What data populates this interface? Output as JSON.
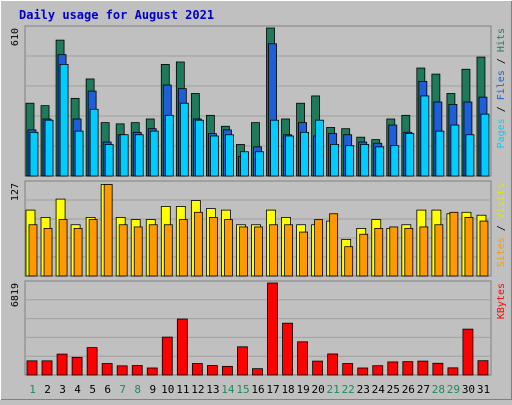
{
  "chart_data": {
    "type": "bar",
    "title": "Daily usage for August 2021",
    "x": [
      "1",
      "2",
      "3",
      "4",
      "5",
      "6",
      "7",
      "8",
      "9",
      "10",
      "11",
      "12",
      "13",
      "14",
      "15",
      "16",
      "17",
      "18",
      "19",
      "20",
      "21",
      "22",
      "23",
      "24",
      "25",
      "26",
      "27",
      "28",
      "29",
      "30",
      "31"
    ],
    "weekend_days": [
      "1",
      "7",
      "8",
      "14",
      "15",
      "21",
      "22",
      "28",
      "29"
    ],
    "panels": [
      {
        "id": "hits",
        "ymax_label": "610",
        "ymax": 610,
        "grid": true,
        "right_label": [
          {
            "text": "Pages",
            "color": "#00ccff"
          },
          {
            "text": " / ",
            "color": "#000000"
          },
          {
            "text": "Files",
            "color": "#1c5fd9"
          },
          {
            "text": " / ",
            "color": "#000000"
          },
          {
            "text": "Hits",
            "color": "#1f7a5c"
          }
        ],
        "series": [
          {
            "name": "Hits",
            "color": "#1f7a5c",
            "values": [
              300,
              290,
              560,
              320,
              400,
              220,
              215,
              220,
              235,
              460,
              470,
              340,
              250,
              205,
              130,
              220,
              610,
              235,
              300,
              330,
              200,
              195,
              160,
              150,
              235,
              250,
              445,
              420,
              340,
              440,
              490
            ]
          },
          {
            "name": "Files",
            "color": "#1c5fd9",
            "values": [
              190,
              235,
              500,
              235,
              350,
              140,
              170,
              180,
              195,
              375,
              360,
              235,
              175,
              190,
              80,
              120,
              545,
              170,
              220,
              165,
              175,
              170,
              140,
              135,
              210,
              180,
              390,
              305,
              295,
              305,
              325
            ]
          },
          {
            "name": "Pages",
            "color": "#00ccff",
            "values": [
              180,
              230,
              460,
              185,
              275,
              130,
              170,
              170,
              185,
              250,
              300,
              230,
              165,
              170,
              100,
              100,
              230,
              165,
              180,
              230,
              130,
              125,
              130,
              120,
              125,
              175,
              330,
              185,
              210,
              170,
              255
            ]
          }
        ]
      },
      {
        "id": "visits",
        "ymax_label": "127",
        "ymax": 127,
        "grid": true,
        "right_label": [
          {
            "text": "Sites",
            "color": "#ff9900"
          },
          {
            "text": " / ",
            "color": "#000000"
          },
          {
            "text": "Visits",
            "color": "#e6e600"
          }
        ],
        "series": [
          {
            "name": "Visits",
            "color": "#ffff00",
            "values": [
              90,
              80,
              105,
              70,
              80,
              125,
              80,
              77,
              77,
              95,
              95,
              103,
              92,
              90,
              70,
              70,
              90,
              80,
              70,
              70,
              75,
              50,
              65,
              77,
              65,
              70,
              90,
              90,
              85,
              87,
              83
            ]
          },
          {
            "name": "Sites",
            "color": "#ff9900",
            "values": [
              70,
              65,
              77,
              65,
              77,
              125,
              70,
              67,
              70,
              70,
              77,
              87,
              80,
              77,
              67,
              67,
              70,
              70,
              60,
              77,
              85,
              40,
              57,
              65,
              67,
              65,
              67,
              70,
              87,
              80,
              75
            ]
          }
        ]
      },
      {
        "id": "kbytes",
        "ymax_label": "6819",
        "ymax": 6819,
        "grid": true,
        "right_label": [
          {
            "text": "KBytes",
            "color": "#ff0000"
          }
        ],
        "series": [
          {
            "name": "KBytes",
            "color": "#ff0000",
            "values": [
              1050,
              1050,
              1550,
              1310,
              2030,
              850,
              680,
              700,
              520,
              2810,
              4150,
              850,
              700,
              640,
              2090,
              470,
              6819,
              3840,
              2460,
              1030,
              1560,
              850,
              520,
              690,
              970,
              990,
              1030,
              870,
              530,
              3400,
              1060
            ]
          }
        ]
      }
    ]
  }
}
